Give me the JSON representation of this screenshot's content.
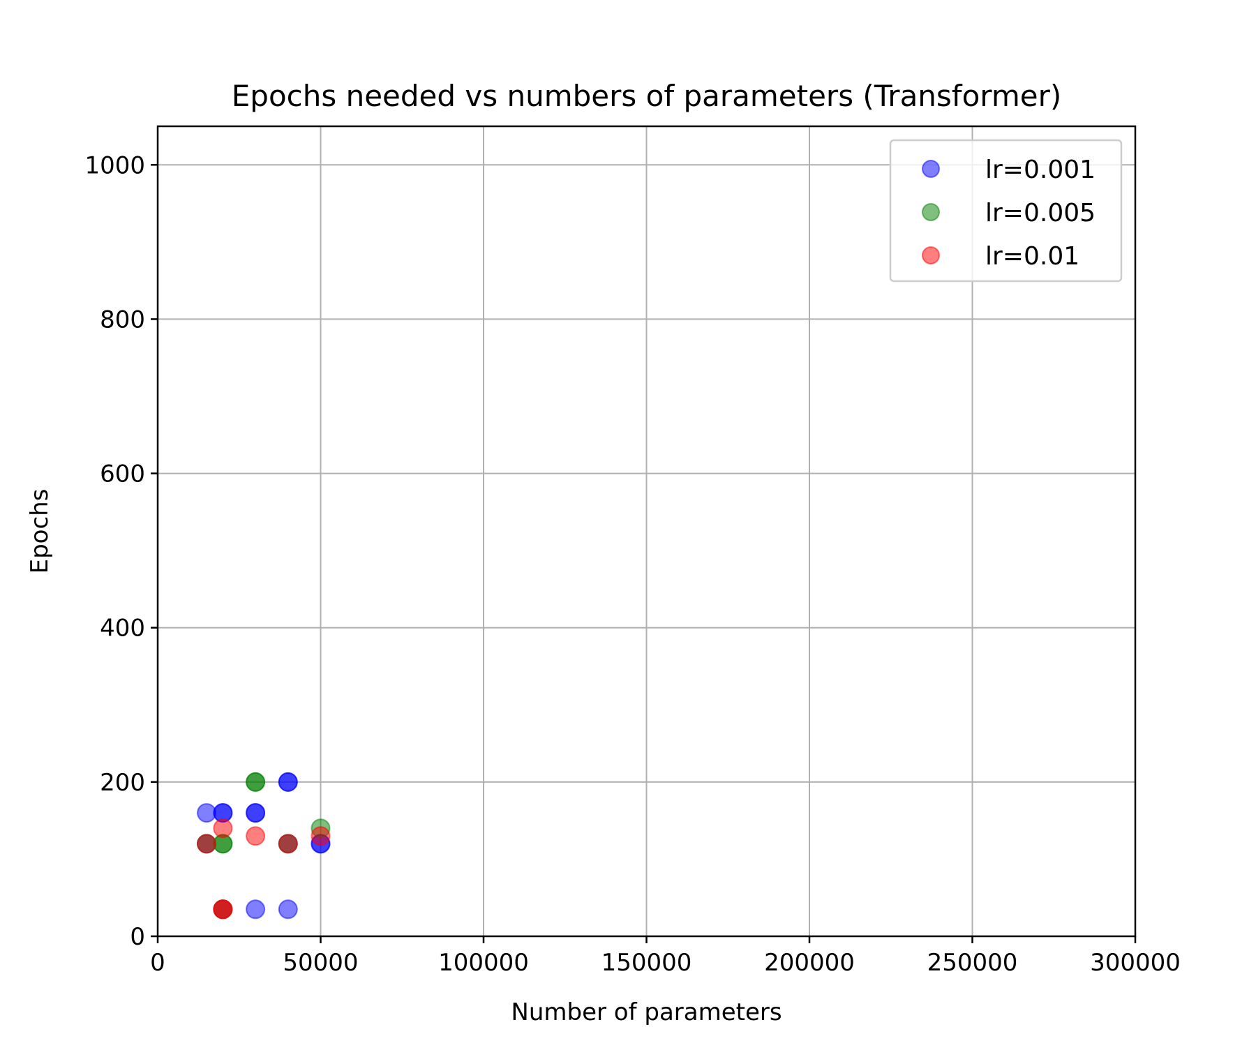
{
  "chart_data": {
    "type": "scatter",
    "title": "Epochs needed vs numbers of parameters (Transformer)",
    "xlabel": "Number of parameters",
    "ylabel": "Epochs",
    "xlim": [
      0,
      300000
    ],
    "ylim": [
      0,
      1050
    ],
    "xticks": [
      0,
      50000,
      100000,
      150000,
      200000,
      250000,
      300000
    ],
    "xtick_labels": [
      "0",
      "50000",
      "100000",
      "150000",
      "200000",
      "250000",
      "300000"
    ],
    "yticks": [
      0,
      200,
      400,
      600,
      800,
      1000
    ],
    "ytick_labels": [
      "0",
      "200",
      "400",
      "600",
      "800",
      "1000"
    ],
    "grid": true,
    "legend_position": "top-right",
    "series": [
      {
        "name": "lr=0.001",
        "color": "#0000ff",
        "points": [
          [
            15000,
            160
          ],
          [
            20000,
            160
          ],
          [
            20000,
            160
          ],
          [
            30000,
            160
          ],
          [
            30000,
            160
          ],
          [
            40000,
            200
          ],
          [
            40000,
            200
          ],
          [
            50000,
            120
          ],
          [
            50000,
            120
          ],
          [
            30000,
            35
          ],
          [
            40000,
            35
          ],
          [
            15000,
            120
          ],
          [
            40000,
            120
          ],
          [
            20000,
            35
          ]
        ]
      },
      {
        "name": "lr=0.005",
        "color": "#008000",
        "points": [
          [
            30000,
            200
          ],
          [
            30000,
            200
          ],
          [
            20000,
            120
          ],
          [
            20000,
            120
          ],
          [
            15000,
            120
          ],
          [
            40000,
            120
          ],
          [
            50000,
            140
          ],
          [
            20000,
            35
          ]
        ]
      },
      {
        "name": "lr=0.01",
        "color": "#ff0000",
        "points": [
          [
            20000,
            140
          ],
          [
            30000,
            130
          ],
          [
            50000,
            130
          ],
          [
            20000,
            35
          ],
          [
            20000,
            35
          ],
          [
            15000,
            120
          ],
          [
            40000,
            120
          ]
        ]
      }
    ]
  }
}
